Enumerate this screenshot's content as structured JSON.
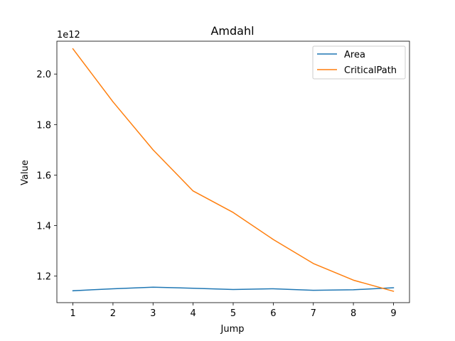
{
  "chart_data": {
    "type": "line",
    "title": "Amdahl",
    "xlabel": "Jump",
    "ylabel": "Value",
    "y_offset_label": "1e12",
    "x": [
      1,
      2,
      3,
      4,
      5,
      6,
      7,
      8,
      9
    ],
    "xlim": [
      0.6,
      9.4
    ],
    "ylim": [
      1.095,
      2.13
    ],
    "x_ticks": [
      1,
      2,
      3,
      4,
      5,
      6,
      7,
      8,
      9
    ],
    "y_ticks": [
      1.2,
      1.4,
      1.6,
      1.8,
      2.0
    ],
    "y_tick_labels": [
      "1.2",
      "1.4",
      "1.6",
      "1.8",
      "2.0"
    ],
    "grid": false,
    "legend_position": "top-right",
    "series": [
      {
        "name": "Area",
        "color": "#1f77b4",
        "values": [
          1.142,
          1.15,
          1.156,
          1.152,
          1.147,
          1.15,
          1.144,
          1.146,
          1.154
        ]
      },
      {
        "name": "CriticalPath",
        "color": "#ff7f0e",
        "values": [
          2.1,
          1.89,
          1.7,
          1.537,
          1.452,
          1.345,
          1.25,
          1.184,
          1.14
        ]
      }
    ]
  }
}
